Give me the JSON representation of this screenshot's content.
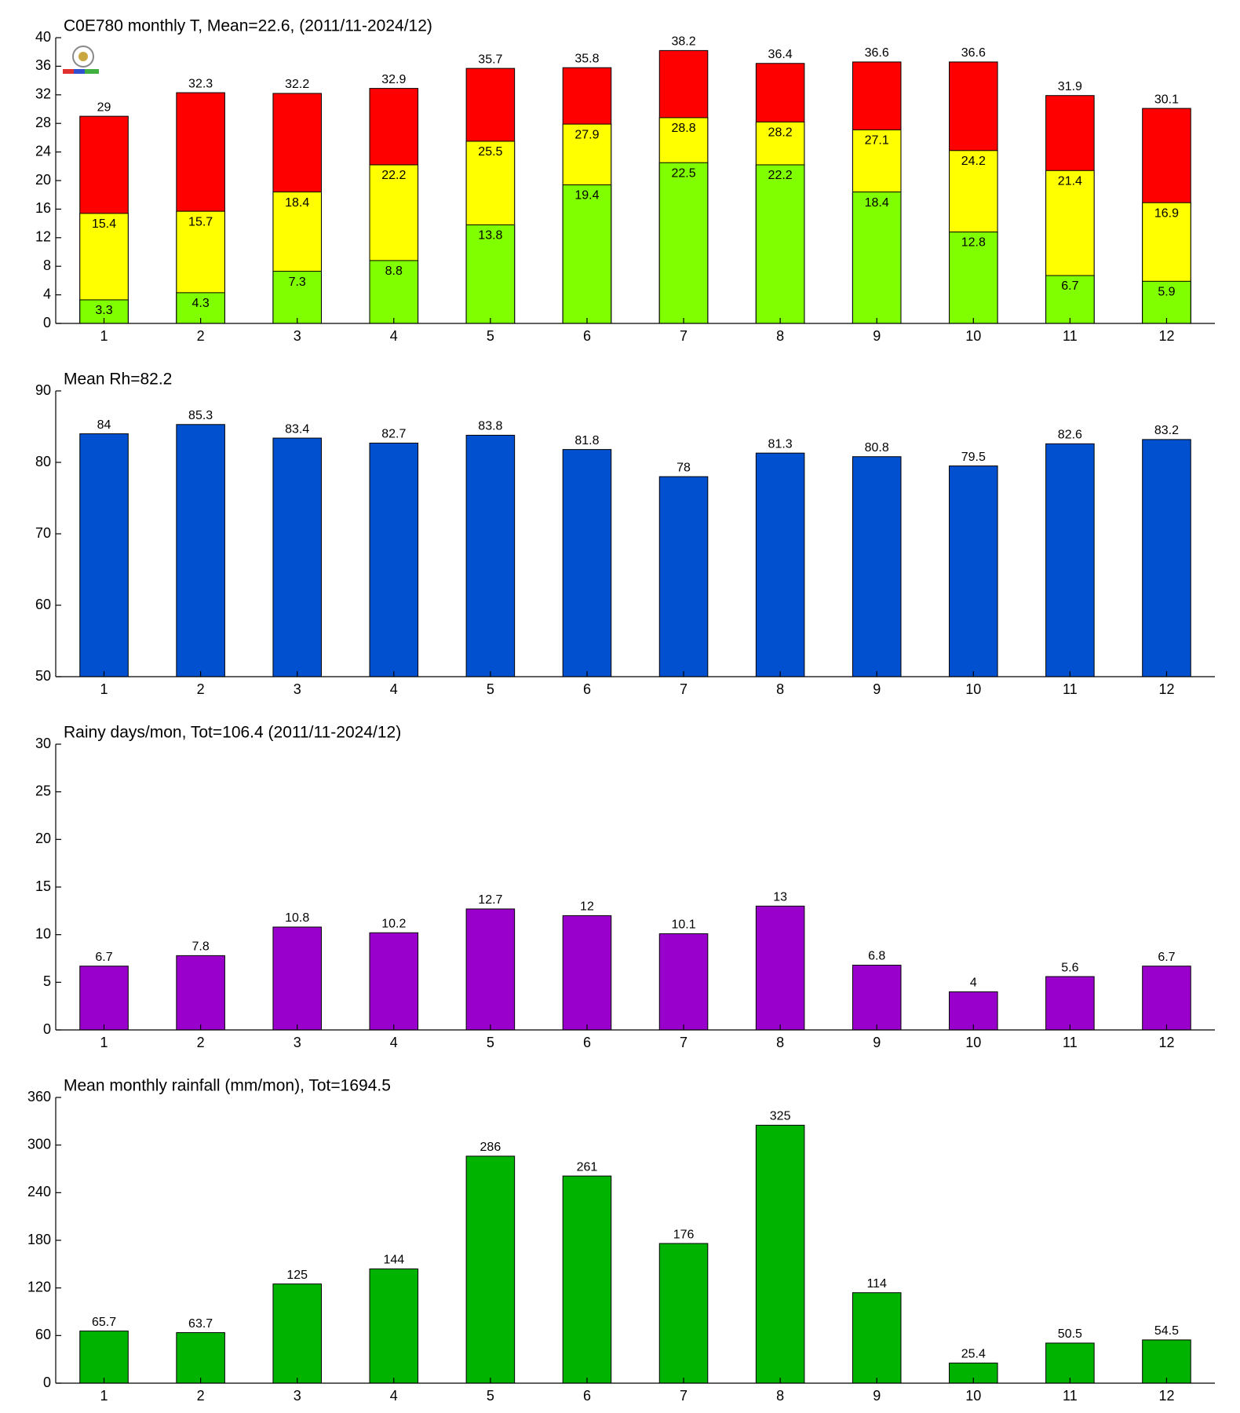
{
  "chart_data": [
    {
      "type": "bar",
      "title": "C0E780 monthly T, Mean=22.6, (2011/11-2024/12)",
      "categories": [
        1,
        2,
        3,
        4,
        5,
        6,
        7,
        8,
        9,
        10,
        11,
        12
      ],
      "series": [
        {
          "color": "#ff0000",
          "values": [
            29,
            32.3,
            32.2,
            32.9,
            35.7,
            35.8,
            38.2,
            36.4,
            36.6,
            36.6,
            31.9,
            30.1
          ]
        },
        {
          "color": "#ffff00",
          "values": [
            15.4,
            15.7,
            18.4,
            22.2,
            25.5,
            27.9,
            28.8,
            28.2,
            27.1,
            24.2,
            21.4,
            16.9
          ]
        },
        {
          "color": "#80ff00",
          "values": [
            3.3,
            4.3,
            7.3,
            8.8,
            13.8,
            19.4,
            22.5,
            22.2,
            18.4,
            12.8,
            6.7,
            5.9
          ]
        }
      ],
      "xlim": [
        0.5,
        12.5
      ],
      "ylim": [
        0,
        40
      ],
      "yticks": [
        0,
        4,
        8,
        12,
        16,
        20,
        24,
        28,
        32,
        36,
        40
      ]
    },
    {
      "type": "bar",
      "title": "Mean Rh=82.2",
      "categories": [
        1,
        2,
        3,
        4,
        5,
        6,
        7,
        8,
        9,
        10,
        11,
        12
      ],
      "series": [
        {
          "color": "#0050d0",
          "values": [
            84,
            85.3,
            83.4,
            82.7,
            83.8,
            81.8,
            78,
            81.3,
            80.8,
            79.5,
            82.6,
            83.2
          ]
        }
      ],
      "xlim": [
        0.5,
        12.5
      ],
      "ylim": [
        50,
        90
      ],
      "yticks": [
        50,
        60,
        70,
        80,
        90
      ]
    },
    {
      "type": "bar",
      "title": "Rainy days/mon, Tot=106.4 (2011/11-2024/12)",
      "categories": [
        1,
        2,
        3,
        4,
        5,
        6,
        7,
        8,
        9,
        10,
        11,
        12
      ],
      "series": [
        {
          "color": "#9900cc",
          "values": [
            6.7,
            7.8,
            10.8,
            10.2,
            12.7,
            12,
            10.1,
            13,
            6.8,
            4,
            5.6,
            6.7
          ]
        }
      ],
      "xlim": [
        0.5,
        12.5
      ],
      "ylim": [
        0,
        30
      ],
      "yticks": [
        0,
        5,
        10,
        15,
        20,
        25,
        30
      ]
    },
    {
      "type": "bar",
      "title": "Mean monthly rainfall (mm/mon), Tot=1694.5",
      "categories": [
        1,
        2,
        3,
        4,
        5,
        6,
        7,
        8,
        9,
        10,
        11,
        12
      ],
      "series": [
        {
          "color": "#00b300",
          "values": [
            65.7,
            63.7,
            125,
            144,
            286,
            261,
            176,
            325,
            114,
            25.4,
            50.5,
            54.5
          ]
        }
      ],
      "xlim": [
        0.5,
        12.5
      ],
      "ylim": [
        0,
        360
      ],
      "yticks": [
        0,
        60,
        120,
        180,
        240,
        300,
        360
      ]
    }
  ]
}
